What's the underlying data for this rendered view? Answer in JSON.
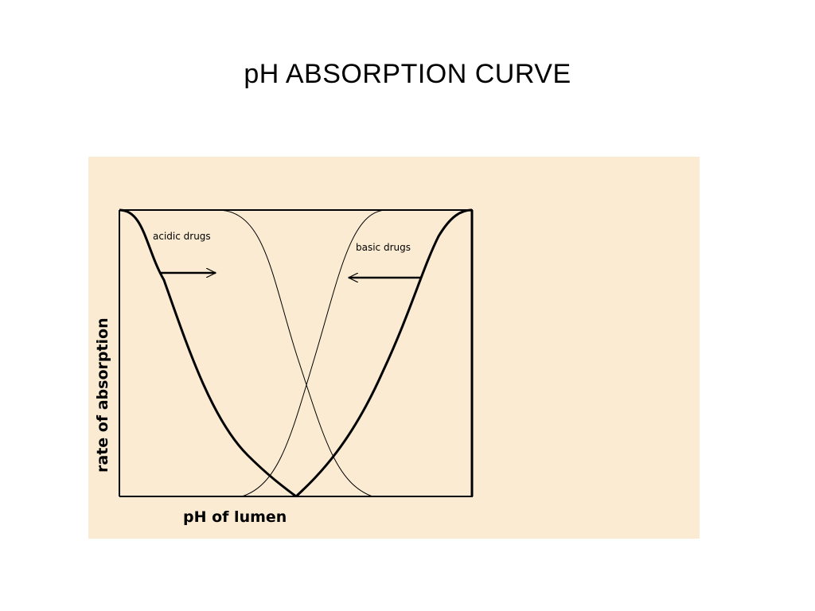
{
  "slide": {
    "title": "pH ABSORPTION CURVE"
  },
  "diagram": {
    "panel_background": "#FBEBD3",
    "line_color": "#000000",
    "x_axis_label": "pH of lumen",
    "y_axis_label": "rate of absorption",
    "labels": {
      "acidic": "acidic drugs",
      "basic": "basic drugs"
    },
    "arrows": {
      "acidic": "points right (toward higher pH)",
      "basic": "points left (toward lower pH)"
    },
    "curves": [
      {
        "name": "acidic-drugs-curve",
        "trend": "decreasing",
        "weight": "thick"
      },
      {
        "name": "basic-drugs-curve",
        "trend": "increasing",
        "weight": "thick"
      },
      {
        "name": "thin-falling-curve",
        "trend": "decreasing",
        "weight": "thin"
      },
      {
        "name": "thin-rising-curve",
        "trend": "increasing",
        "weight": "thin"
      }
    ]
  }
}
